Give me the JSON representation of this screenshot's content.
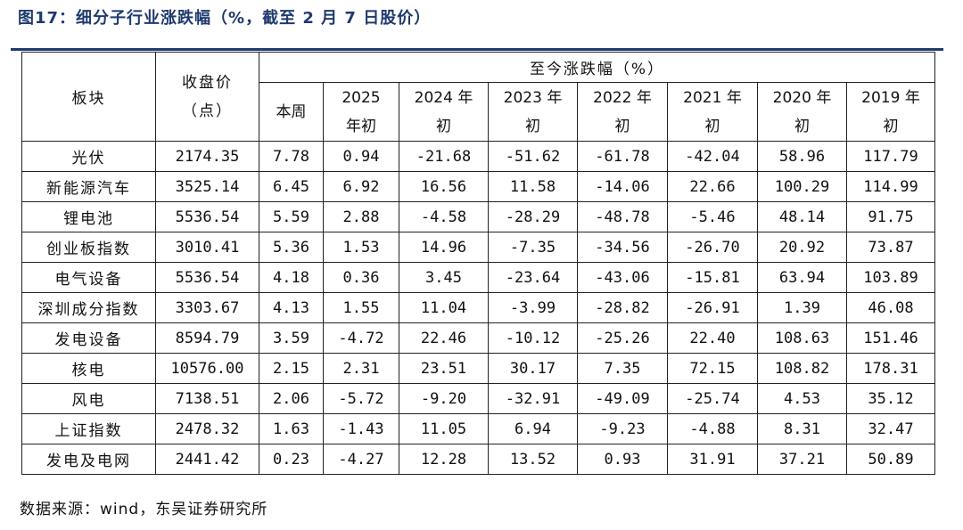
{
  "title": "图17：细分子行业涨跌幅（%，截至 2 月 7 日股价）",
  "table": {
    "col_sector": "板块",
    "col_close": "收盘价（点）",
    "col_close_line1": "收盘价",
    "col_close_line2": "（点）",
    "group_header": "至今涨跌幅（%）",
    "sub_headers": [
      {
        "line1": "本周",
        "line2": ""
      },
      {
        "line1": "2025",
        "line2": "年初"
      },
      {
        "line1": "2024 年",
        "line2": "初"
      },
      {
        "line1": "2023 年",
        "line2": "初"
      },
      {
        "line1": "2022 年",
        "line2": "初"
      },
      {
        "line1": "2021 年",
        "line2": "初"
      },
      {
        "line1": "2020 年",
        "line2": "初"
      },
      {
        "line1": "2019 年",
        "line2": "初"
      }
    ],
    "rows": [
      {
        "sector": "光伏",
        "close": "2174.35",
        "vals": [
          "7.78",
          "0.94",
          "-21.68",
          "-51.62",
          "-61.78",
          "-42.04",
          "58.96",
          "117.79"
        ]
      },
      {
        "sector": "新能源汽车",
        "close": "3525.14",
        "vals": [
          "6.45",
          "6.92",
          "16.56",
          "11.58",
          "-14.06",
          "22.66",
          "100.29",
          "114.99"
        ]
      },
      {
        "sector": "锂电池",
        "close": "5536.54",
        "vals": [
          "5.59",
          "2.88",
          "-4.58",
          "-28.29",
          "-48.78",
          "-5.46",
          "48.14",
          "91.75"
        ]
      },
      {
        "sector": "创业板指数",
        "close": "3010.41",
        "vals": [
          "5.36",
          "1.53",
          "14.96",
          "-7.35",
          "-34.56",
          "-26.70",
          "20.92",
          "73.87"
        ]
      },
      {
        "sector": "电气设备",
        "close": "5536.54",
        "vals": [
          "4.18",
          "0.36",
          "3.45",
          "-23.64",
          "-43.06",
          "-15.81",
          "63.94",
          "103.89"
        ]
      },
      {
        "sector": "深圳成分指数",
        "close": "3303.67",
        "vals": [
          "4.13",
          "1.55",
          "11.04",
          "-3.99",
          "-28.82",
          "-26.91",
          "1.39",
          "46.08"
        ]
      },
      {
        "sector": "发电设备",
        "close": "8594.79",
        "vals": [
          "3.59",
          "-4.72",
          "22.46",
          "-10.12",
          "-25.26",
          "22.40",
          "108.63",
          "151.46"
        ]
      },
      {
        "sector": "核电",
        "close": "10576.00",
        "vals": [
          "2.15",
          "2.31",
          "23.51",
          "30.17",
          "7.35",
          "72.15",
          "108.82",
          "178.31"
        ]
      },
      {
        "sector": "风电",
        "close": "7138.51",
        "vals": [
          "2.06",
          "-5.72",
          "-9.20",
          "-32.91",
          "-49.09",
          "-25.74",
          "4.53",
          "35.12"
        ]
      },
      {
        "sector": "上证指数",
        "close": "2478.32",
        "vals": [
          "1.63",
          "-1.43",
          "11.05",
          "6.94",
          "-9.23",
          "-4.88",
          "8.31",
          "32.47"
        ]
      },
      {
        "sector": "发电及电网",
        "close": "2441.42",
        "vals": [
          "0.23",
          "-4.27",
          "12.28",
          "13.52",
          "0.93",
          "31.91",
          "37.21",
          "50.89"
        ]
      }
    ]
  },
  "source": "数据来源：wind，东吴证券研究所",
  "colors": {
    "title": "#1f3a6e",
    "rule": "#1f3a6e",
    "border": "#222222",
    "text": "#111111"
  }
}
